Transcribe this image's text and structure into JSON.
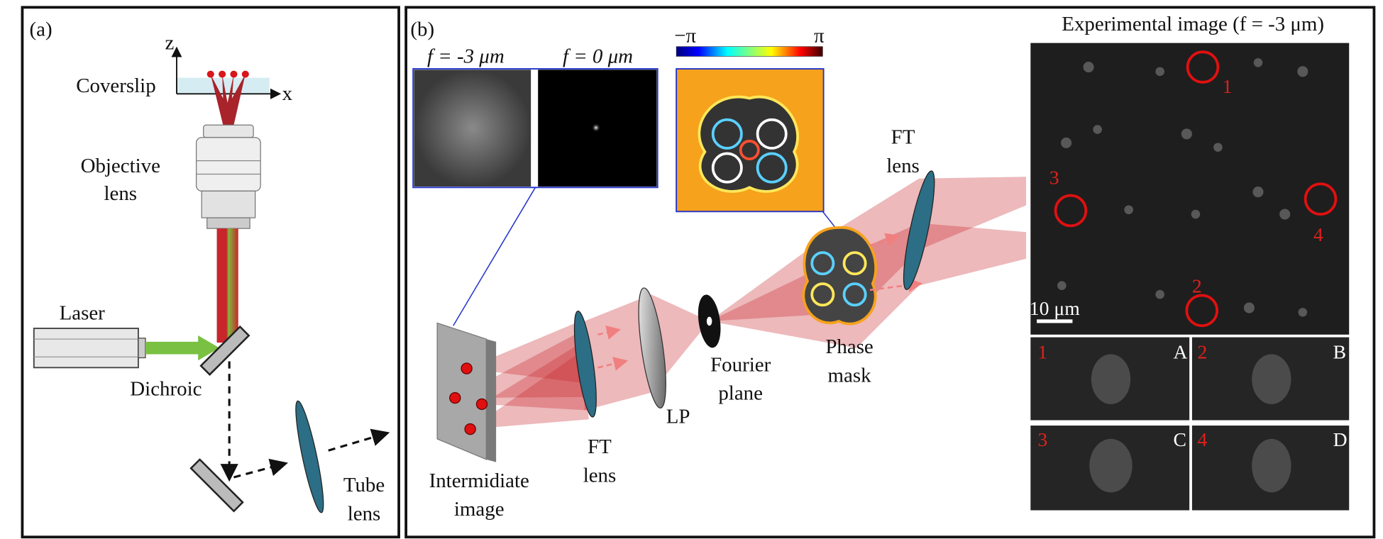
{
  "panel_a": {
    "label": "(a)",
    "axis_z": "z",
    "axis_x": "x",
    "coverslip": "Coverslip",
    "objective": [
      "Objective",
      "lens"
    ],
    "laser": "Laser",
    "dichroic": "Dichroic",
    "tube_lens": [
      "Tube",
      "lens"
    ]
  },
  "panel_b": {
    "label": "(b)",
    "psf_labels": [
      "f = -3 μm",
      "f = 0 μm"
    ],
    "colorbar": {
      "min": "−π",
      "max": "π"
    },
    "intermediate_image": [
      "Intermidiate",
      "image"
    ],
    "ft_lens_1": [
      "FT",
      "lens"
    ],
    "lp": "LP",
    "fourier_plane": [
      "Fourier",
      "plane"
    ],
    "phase_mask": [
      "Phase",
      "mask"
    ],
    "ft_lens_2": [
      "FT",
      "lens"
    ],
    "experimental_title": "Experimental image (f = -3 μm)",
    "scale_bar": "10 μm",
    "markers": [
      "1",
      "2",
      "3",
      "4"
    ],
    "insets": [
      {
        "number": "1",
        "letter": "A"
      },
      {
        "number": "2",
        "letter": "B"
      },
      {
        "number": "3",
        "letter": "C"
      },
      {
        "number": "4",
        "letter": "D"
      }
    ]
  }
}
